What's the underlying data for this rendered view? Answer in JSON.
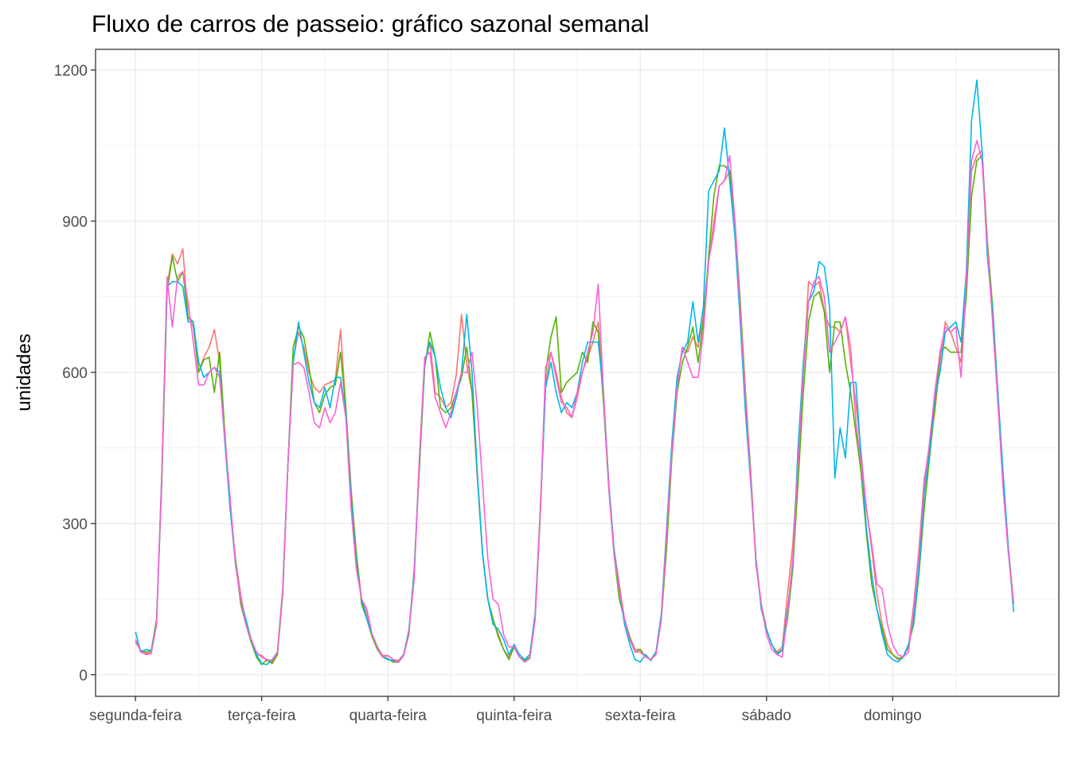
{
  "chart_data": {
    "type": "line",
    "title": "Fluxo de carros de passeio: gráfico sazonal semanal",
    "y_label": "unidades",
    "x": [
      0,
      1,
      2,
      3,
      4,
      5,
      6,
      7,
      8,
      9,
      10,
      11,
      12,
      13,
      14,
      15,
      16,
      17,
      18,
      19,
      20,
      21,
      22,
      23,
      24,
      25,
      26,
      27,
      28,
      29,
      30,
      31,
      32,
      33,
      34,
      35,
      36,
      37,
      38,
      39,
      40,
      41,
      42,
      43,
      44,
      45,
      46,
      47,
      48,
      49,
      50,
      51,
      52,
      53,
      54,
      55,
      56,
      57,
      58,
      59,
      60,
      61,
      62,
      63,
      64,
      65,
      66,
      67,
      68,
      69,
      70,
      71,
      72,
      73,
      74,
      75,
      76,
      77,
      78,
      79,
      80,
      81,
      82,
      83,
      84,
      85,
      86,
      87,
      88,
      89,
      90,
      91,
      92,
      93,
      94,
      95,
      96,
      97,
      98,
      99,
      100,
      101,
      102,
      103,
      104,
      105,
      106,
      107,
      108,
      109,
      110,
      111,
      112,
      113,
      114,
      115,
      116,
      117,
      118,
      119,
      120,
      121,
      122,
      123,
      124,
      125,
      126,
      127,
      128,
      129,
      130,
      131,
      132,
      133,
      134,
      135,
      136,
      137,
      138,
      139,
      140,
      141,
      142,
      143,
      144,
      145,
      146,
      147,
      148,
      149,
      150,
      151,
      152,
      153,
      154,
      155,
      156,
      157,
      158,
      159,
      160,
      161,
      162,
      163,
      164,
      165,
      166,
      167
    ],
    "series": [
      {
        "color": "#F8766D",
        "values": [
          70,
          45,
          42,
          45,
          100,
          390,
          770,
          835,
          815,
          845,
          710,
          690,
          600,
          630,
          650,
          685,
          620,
          470,
          340,
          230,
          160,
          100,
          65,
          40,
          38,
          28,
          25,
          45,
          165,
          420,
          625,
          680,
          650,
          600,
          570,
          560,
          575,
          580,
          585,
          685,
          530,
          370,
          240,
          150,
          120,
          80,
          55,
          38,
          38,
          30,
          28,
          40,
          85,
          200,
          430,
          615,
          660,
          560,
          550,
          530,
          540,
          595,
          715,
          615,
          560,
          390,
          240,
          150,
          110,
          80,
          50,
          35,
          58,
          40,
          30,
          40,
          120,
          330,
          580,
          640,
          600,
          550,
          520,
          510,
          550,
          600,
          630,
          660,
          700,
          560,
          380,
          250,
          180,
          110,
          75,
          50,
          50,
          35,
          30,
          45,
          120,
          280,
          450,
          580,
          650,
          640,
          670,
          650,
          710,
          820,
          900,
          970,
          980,
          1000,
          900,
          740,
          560,
          400,
          230,
          140,
          90,
          60,
          45,
          55,
          160,
          260,
          420,
          600,
          780,
          770,
          780,
          720,
          690,
          690,
          680,
          710,
          620,
          540,
          440,
          330,
          250,
          160,
          100,
          60,
          40,
          30,
          35,
          55,
          140,
          250,
          390,
          450,
          520,
          620,
          700,
          680,
          650,
          620,
          790,
          1000,
          1030,
          1040,
          860,
          720,
          550,
          380,
          250,
          140
        ]
      },
      {
        "color": "#53B400",
        "values": [
          65,
          48,
          45,
          48,
          110,
          380,
          760,
          830,
          780,
          800,
          710,
          700,
          600,
          625,
          630,
          560,
          640,
          480,
          330,
          230,
          140,
          100,
          65,
          35,
          20,
          30,
          22,
          40,
          160,
          420,
          650,
          690,
          670,
          610,
          540,
          520,
          555,
          570,
          575,
          640,
          530,
          360,
          240,
          140,
          110,
          75,
          50,
          35,
          32,
          25,
          25,
          38,
          80,
          210,
          410,
          610,
          680,
          630,
          530,
          520,
          530,
          560,
          590,
          650,
          560,
          400,
          240,
          150,
          110,
          75,
          50,
          30,
          55,
          35,
          28,
          35,
          110,
          320,
          600,
          670,
          710,
          560,
          580,
          590,
          600,
          640,
          620,
          700,
          680,
          540,
          370,
          240,
          150,
          110,
          75,
          45,
          50,
          35,
          30,
          45,
          110,
          250,
          430,
          560,
          620,
          650,
          690,
          620,
          700,
          830,
          950,
          1010,
          1010,
          1000,
          900,
          740,
          560,
          400,
          220,
          140,
          90,
          60,
          42,
          50,
          110,
          210,
          380,
          560,
          700,
          750,
          760,
          720,
          600,
          700,
          700,
          620,
          560,
          480,
          400,
          280,
          180,
          130,
          90,
          50,
          40,
          32,
          35,
          60,
          100,
          200,
          330,
          430,
          530,
          640,
          650,
          640,
          640,
          640,
          750,
          950,
          1020,
          1030,
          860,
          730,
          560,
          390,
          250,
          140
        ]
      },
      {
        "color": "#00B6EB",
        "values": [
          85,
          45,
          50,
          48,
          100,
          400,
          770,
          780,
          780,
          770,
          700,
          700,
          620,
          590,
          600,
          610,
          600,
          460,
          330,
          220,
          150,
          110,
          70,
          40,
          22,
          20,
          30,
          45,
          170,
          420,
          620,
          700,
          640,
          580,
          540,
          530,
          570,
          530,
          590,
          590,
          520,
          350,
          220,
          150,
          110,
          80,
          55,
          35,
          30,
          28,
          25,
          40,
          90,
          200,
          430,
          620,
          660,
          630,
          570,
          530,
          510,
          550,
          600,
          715,
          600,
          400,
          240,
          150,
          100,
          90,
          70,
          40,
          60,
          40,
          30,
          40,
          120,
          330,
          570,
          620,
          560,
          520,
          540,
          530,
          560,
          620,
          660,
          660,
          660,
          560,
          380,
          250,
          170,
          100,
          60,
          30,
          25,
          40,
          28,
          45,
          120,
          290,
          460,
          590,
          640,
          660,
          740,
          660,
          730,
          960,
          980,
          1000,
          1085,
          980,
          870,
          700,
          520,
          380,
          230,
          130,
          90,
          60,
          40,
          48,
          130,
          220,
          450,
          620,
          740,
          760,
          820,
          810,
          730,
          390,
          490,
          430,
          580,
          580,
          430,
          290,
          200,
          130,
          80,
          40,
          30,
          25,
          35,
          60,
          110,
          210,
          360,
          440,
          550,
          600,
          680,
          690,
          700,
          660,
          800,
          1100,
          1180,
          1040,
          830,
          720,
          560,
          400,
          250,
          125
        ]
      },
      {
        "color": "#FB61D7",
        "values": [
          70,
          45,
          40,
          42,
          100,
          400,
          790,
          690,
          790,
          800,
          740,
          660,
          575,
          575,
          600,
          610,
          590,
          470,
          350,
          220,
          150,
          100,
          70,
          45,
          35,
          30,
          28,
          45,
          170,
          420,
          615,
          620,
          610,
          560,
          500,
          490,
          530,
          500,
          520,
          580,
          510,
          330,
          210,
          150,
          130,
          80,
          55,
          35,
          38,
          30,
          25,
          38,
          85,
          190,
          430,
          630,
          640,
          550,
          520,
          490,
          520,
          560,
          600,
          600,
          640,
          530,
          380,
          230,
          150,
          140,
          80,
          55,
          55,
          35,
          25,
          32,
          110,
          330,
          610,
          640,
          590,
          540,
          530,
          510,
          560,
          600,
          640,
          680,
          775,
          560,
          370,
          240,
          170,
          110,
          70,
          45,
          45,
          35,
          30,
          40,
          110,
          280,
          440,
          570,
          650,
          620,
          590,
          590,
          680,
          820,
          880,
          970,
          980,
          1030,
          900,
          720,
          550,
          390,
          220,
          140,
          80,
          50,
          40,
          35,
          120,
          230,
          420,
          600,
          740,
          780,
          790,
          750,
          640,
          660,
          680,
          710,
          650,
          500,
          420,
          330,
          260,
          180,
          170,
          100,
          60,
          40,
          35,
          45,
          130,
          240,
          380,
          460,
          560,
          640,
          690,
          680,
          690,
          590,
          780,
          1020,
          1060,
          1020,
          850,
          700,
          540,
          370,
          240,
          140
        ]
      }
    ],
    "xlim": [
      -7.6,
      175.6
    ],
    "xticks": [
      {
        "value": 0,
        "label": "segunda-feira"
      },
      {
        "value": 24,
        "label": "terça-feira"
      },
      {
        "value": 48,
        "label": "quarta-feira"
      },
      {
        "value": 72,
        "label": "quinta-feira"
      },
      {
        "value": 96,
        "label": "sexta-feira"
      },
      {
        "value": 120,
        "label": "sábado"
      },
      {
        "value": 144,
        "label": "domingo"
      }
    ],
    "ylim": [
      -43,
      1241
    ],
    "yticks": [
      0,
      300,
      600,
      900,
      1200
    ],
    "grid": true
  }
}
